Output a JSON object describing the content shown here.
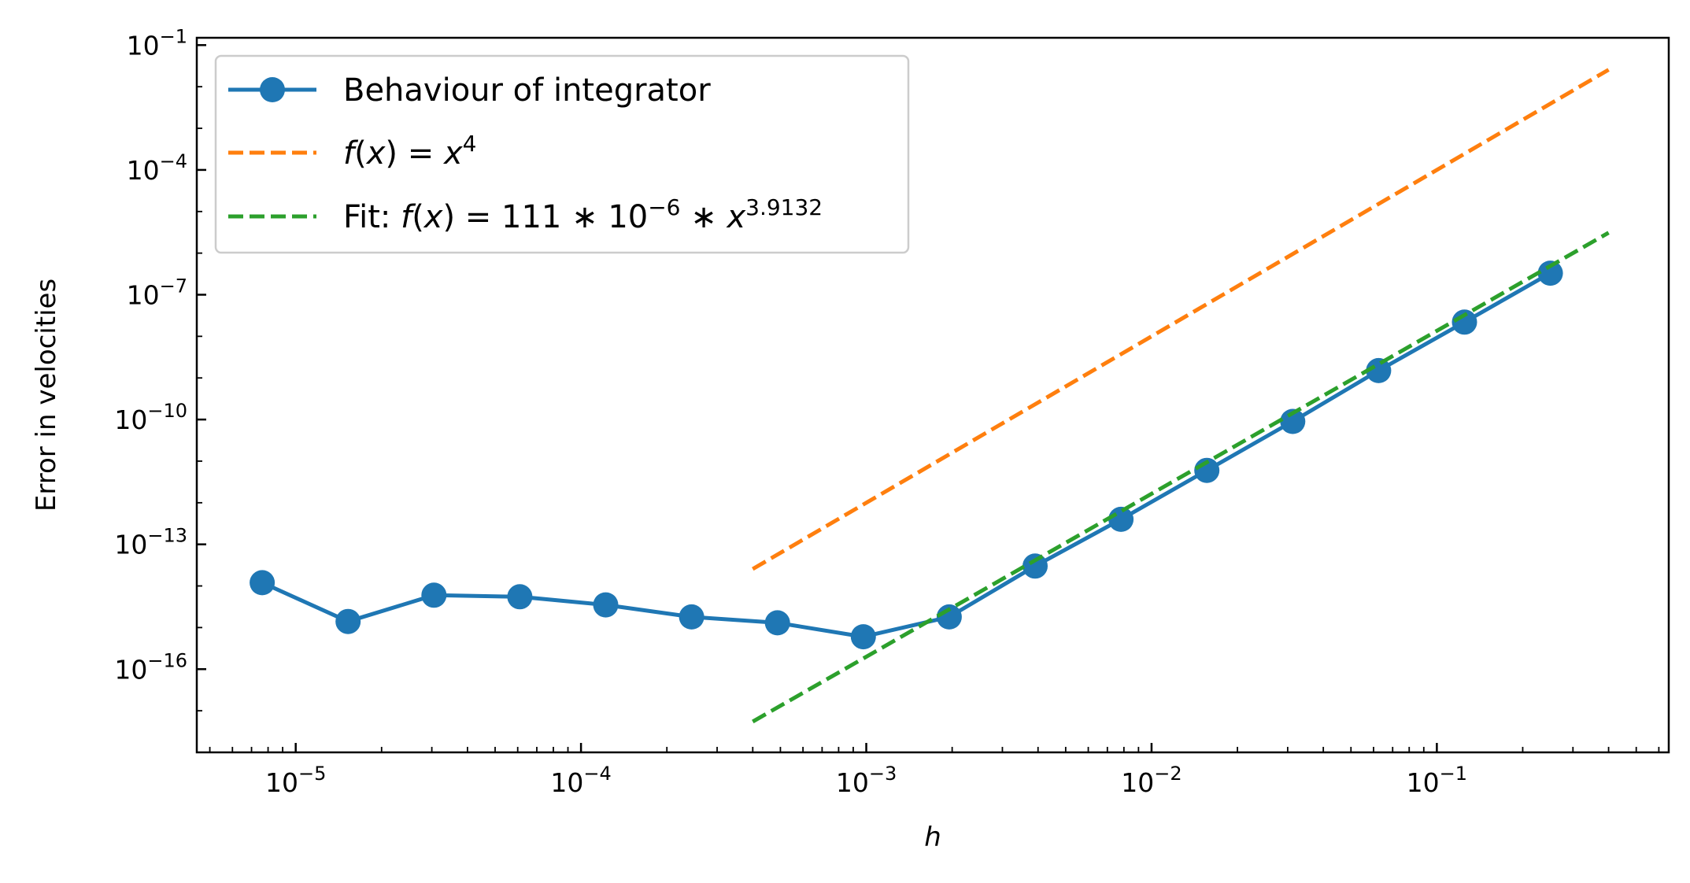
{
  "chart_data": {
    "type": "line",
    "title": "",
    "xlabel": "h",
    "ylabel": "Error in velocities",
    "xscale": "log",
    "yscale": "log",
    "xlim": [
      4.5e-06,
      0.65
    ],
    "ylim": [
      1e-18,
      0.15
    ],
    "grid": false,
    "legend_position": "top-left",
    "x_ticks": [
      {
        "value": 1e-05,
        "base": "10",
        "exp": "−5"
      },
      {
        "value": 0.0001,
        "base": "10",
        "exp": "−4"
      },
      {
        "value": 0.001,
        "base": "10",
        "exp": "−3"
      },
      {
        "value": 0.01,
        "base": "10",
        "exp": "−2"
      },
      {
        "value": 0.1,
        "base": "10",
        "exp": "−1"
      }
    ],
    "y_ticks": [
      {
        "value": 0.1,
        "base": "10",
        "exp": "−1"
      },
      {
        "value": 0.0001,
        "base": "10",
        "exp": "−4"
      },
      {
        "value": 1e-07,
        "base": "10",
        "exp": "−7"
      },
      {
        "value": 1e-10,
        "base": "10",
        "exp": "−10"
      },
      {
        "value": 1e-13,
        "base": "10",
        "exp": "−13"
      },
      {
        "value": 1e-16,
        "base": "10",
        "exp": "−16"
      }
    ],
    "series": [
      {
        "name": "Behaviour of integrator",
        "color": "#1f77b4",
        "style": "solid-marker",
        "x": [
          7.63e-06,
          1.526e-05,
          3.052e-05,
          6.104e-05,
          0.00012207,
          0.00024414,
          0.00048828,
          0.00097656,
          0.0019531,
          0.0039063,
          0.0078125,
          0.015625,
          0.03125,
          0.0625,
          0.125,
          0.25
        ],
        "y": [
          1.2e-14,
          1.4e-15,
          6e-15,
          5.5e-15,
          3.5e-15,
          1.8e-15,
          1.3e-15,
          6e-16,
          1.8e-15,
          3e-14,
          4e-13,
          6e-12,
          9e-11,
          1.5e-09,
          2.2e-08,
          3.3e-07
        ]
      },
      {
        "name": "f(x) = x^4",
        "color": "#ff7f0e",
        "style": "dashed",
        "x": [
          0.0004,
          0.4
        ],
        "y": [
          2.56e-14,
          0.0256
        ]
      },
      {
        "name": "Fit: f(x) = 111 * 10^-6 * x^3.9132",
        "color": "#2ca02c",
        "style": "dashed",
        "x": [
          0.0004,
          0.4
        ],
        "y": [
          5.5e-18,
          3.1e-06
        ]
      }
    ],
    "legend": {
      "entries": [
        {
          "parts": [
            {
              "t": "Behaviour of integrator"
            }
          ]
        },
        {
          "parts": [
            {
              "t": "f",
              "i": true
            },
            {
              "t": "("
            },
            {
              "t": "x",
              "i": true
            },
            {
              "t": ") = "
            },
            {
              "t": "x",
              "i": true
            },
            {
              "t": "4",
              "sup": true
            }
          ]
        },
        {
          "parts": [
            {
              "t": "Fit: "
            },
            {
              "t": "f",
              "i": true
            },
            {
              "t": "("
            },
            {
              "t": "x",
              "i": true
            },
            {
              "t": ") = 111 ∗ 10"
            },
            {
              "t": "−6",
              "sup": true
            },
            {
              "t": " ∗ "
            },
            {
              "t": "x",
              "i": true
            },
            {
              "t": "3.9132",
              "sup": true
            }
          ]
        }
      ]
    }
  }
}
